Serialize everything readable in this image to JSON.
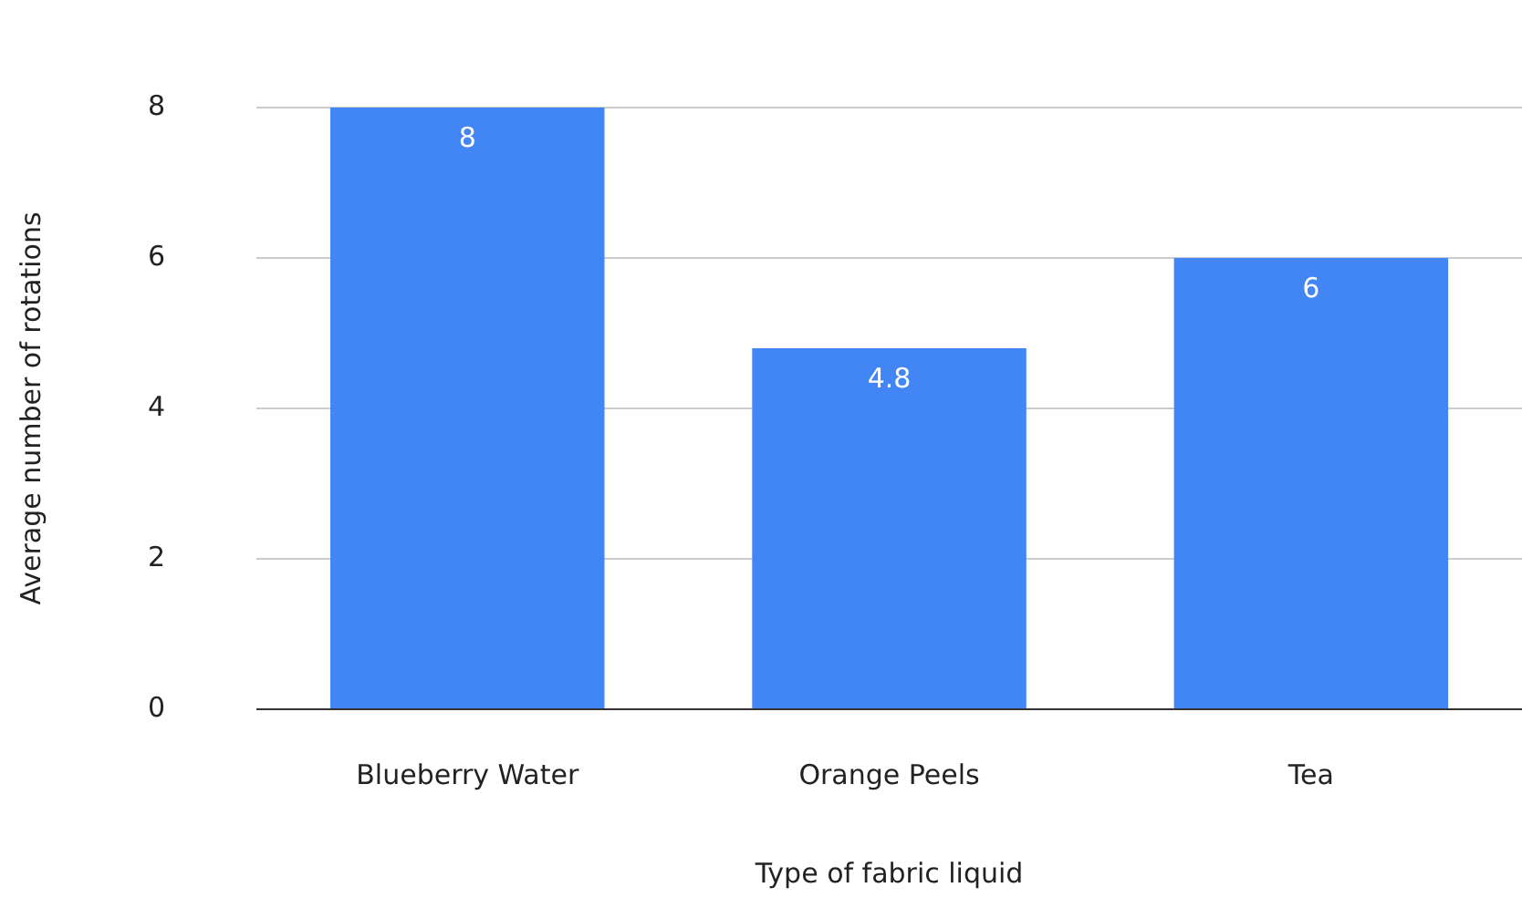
{
  "chart_data": {
    "type": "bar",
    "xlabel": "Type of fabric liquid",
    "ylabel": "Average number of rotations",
    "categories": [
      "Blueberry Water",
      "Orange Peels",
      "Tea"
    ],
    "values": [
      8,
      4.8,
      6
    ],
    "color": "#4285f4",
    "ylim": [
      0,
      8
    ],
    "yticks": [
      0,
      2,
      4,
      6,
      8
    ],
    "grid": "y",
    "data_labels": true,
    "legend": false
  }
}
